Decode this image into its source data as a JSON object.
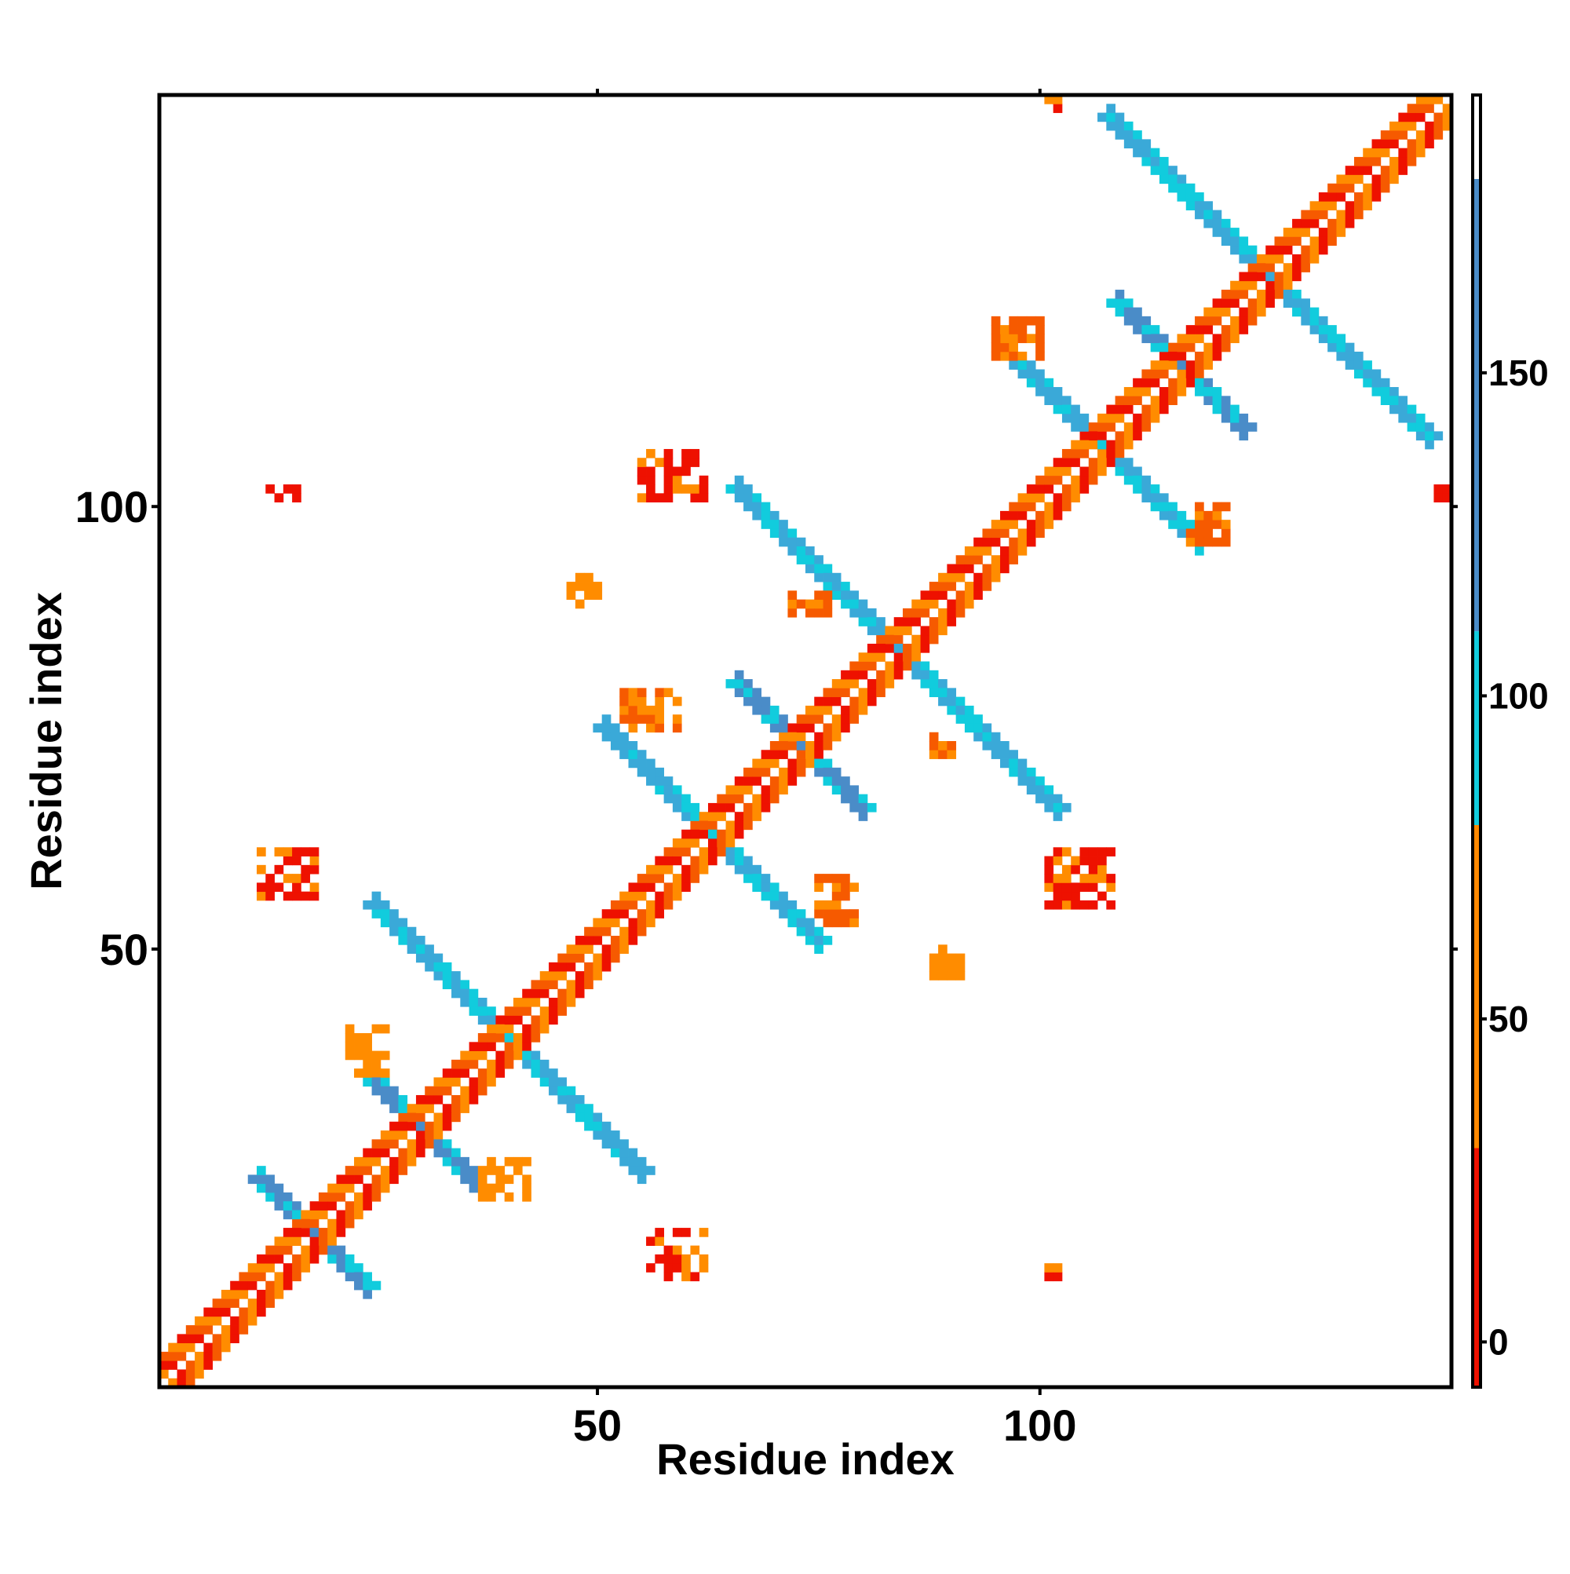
{
  "chart_data": {
    "type": "heatmap",
    "title": "",
    "xlabel": "Residue index",
    "ylabel": "Residue index",
    "xlim": [
      1,
      146
    ],
    "ylim": [
      1,
      146
    ],
    "x_ticks": [
      50,
      100
    ],
    "y_ticks": [
      50,
      100
    ],
    "colorbar": {
      "ticks": [
        0,
        50,
        100,
        150
      ],
      "range": [
        -7,
        193
      ],
      "bands": [
        {
          "from": -7,
          "to": 30,
          "color": "#ee1100"
        },
        {
          "from": 30,
          "to": 80,
          "color": "#ff8800"
        },
        {
          "from": 80,
          "to": 110,
          "color": "#11ccdd"
        },
        {
          "from": 110,
          "to": 180,
          "color": "#4a8cc8"
        },
        {
          "from": 180,
          "to": 193,
          "color": "#ffffff"
        }
      ]
    },
    "grid": false,
    "legend": "colorbar-right",
    "colors": {
      "red": "#ee1100",
      "orange_red": "#f65a00",
      "orange": "#ff8c00",
      "amber": "#ffa500",
      "cyan": "#11ccdd",
      "sky": "#3aa9d8",
      "steel": "#4a8cc8"
    },
    "main_diagonal": {
      "from": 1,
      "to": 146,
      "band_width": 6,
      "colors": [
        "red",
        "orange_red",
        "orange"
      ]
    },
    "cross_helices": [
      {
        "center": [
          18,
          18
        ],
        "length": 12,
        "width": 3,
        "color": "steel"
      },
      {
        "center": [
          30,
          30
        ],
        "length": 12,
        "width": 3,
        "color": "steel"
      },
      {
        "center": [
          40,
          40
        ],
        "length": 30,
        "width": 3,
        "color": "sky"
      },
      {
        "center": [
          63,
          63
        ],
        "length": 24,
        "width": 3,
        "color": "sky"
      },
      {
        "center": [
          73,
          73
        ],
        "length": 14,
        "width": 3,
        "color": "steel"
      },
      {
        "center": [
          84,
          84
        ],
        "length": 36,
        "width": 3,
        "color": "sky"
      },
      {
        "center": [
          107,
          107
        ],
        "length": 22,
        "width": 3,
        "color": "sky"
      },
      {
        "center": [
          116,
          116
        ],
        "length": 14,
        "width": 3,
        "color": "steel"
      },
      {
        "center": [
          126,
          126
        ],
        "length": 36,
        "width": 3,
        "color": "sky"
      }
    ],
    "off_diagonal_clusters": [
      {
        "x": [
          55,
          62
        ],
        "y": [
          101,
          106
        ],
        "color": "red"
      },
      {
        "x": [
          101,
          108
        ],
        "y": [
          55,
          61
        ],
        "color": "red"
      },
      {
        "x": [
          12,
          18
        ],
        "y": [
          56,
          61
        ],
        "color": "red"
      },
      {
        "x": [
          56,
          62
        ],
        "y": [
          13,
          18
        ],
        "color": "red"
      },
      {
        "x": [
          47,
          50
        ],
        "y": [
          89,
          92
        ],
        "color": "orange"
      },
      {
        "x": [
          88,
          91
        ],
        "y": [
          47,
          50
        ],
        "color": "orange"
      },
      {
        "x": [
          22,
          26
        ],
        "y": [
          36,
          41
        ],
        "color": "orange"
      },
      {
        "x": [
          37,
          42
        ],
        "y": [
          22,
          26
        ],
        "color": "orange"
      },
      {
        "x": [
          53,
          59
        ],
        "y": [
          75,
          79
        ],
        "color": "orange_red"
      },
      {
        "x": [
          75,
          79
        ],
        "y": [
          53,
          58
        ],
        "color": "orange_red"
      },
      {
        "x": [
          95,
          100
        ],
        "y": [
          117,
          121
        ],
        "color": "orange_red"
      },
      {
        "x": [
          117,
          121
        ],
        "y": [
          96,
          100
        ],
        "color": "orange_red"
      },
      {
        "x": [
          13,
          16
        ],
        "y": [
          101,
          102
        ],
        "color": "red"
      },
      {
        "x": [
          101,
          103
        ],
        "y": [
          13,
          14
        ],
        "color": "red"
      },
      {
        "x": [
          101,
          102
        ],
        "y": [
          145,
          146
        ],
        "color": "red"
      },
      {
        "x": [
          145,
          146
        ],
        "y": [
          101,
          102
        ],
        "color": "red"
      },
      {
        "x": [
          72,
          76
        ],
        "y": [
          88,
          90
        ],
        "color": "orange_red"
      },
      {
        "x": [
          88,
          90
        ],
        "y": [
          72,
          74
        ],
        "color": "orange_red"
      }
    ]
  }
}
